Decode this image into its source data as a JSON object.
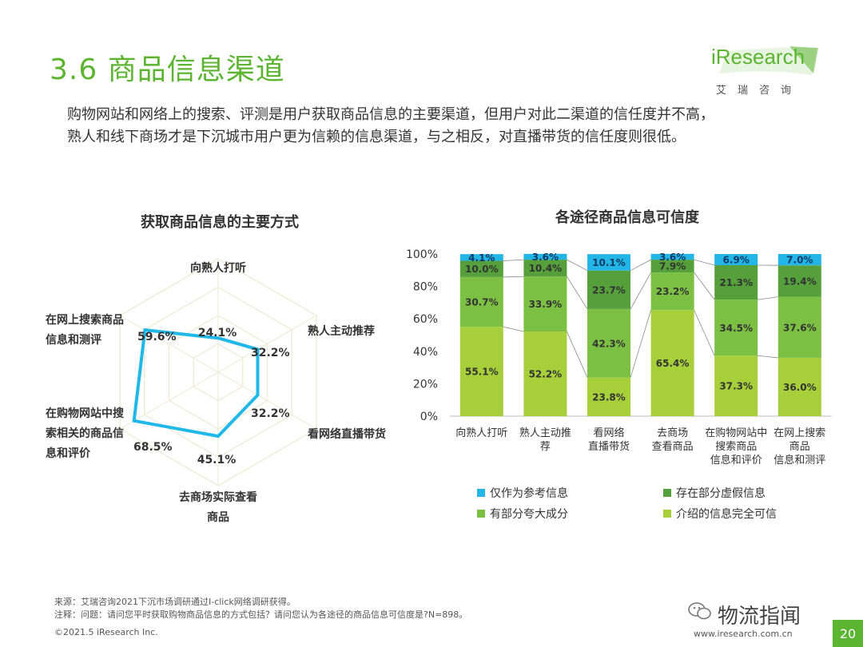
{
  "header": {
    "title": "3.6 商品信息渠道",
    "logo_main": "iResearch",
    "logo_sub": "艾瑞咨询"
  },
  "summary": [
    "购物网站和网络上的搜索、评测是用户获取商品信息的主要渠道，但用户对此二渠道的信任度并不高，",
    "熟人和线下商场才是下沉城市用户更为信赖的信息渠道，与之相反，对直播带货的信任度则很低。"
  ],
  "footer": {
    "source": "来源：艾瑞咨询2021下沉市场调研通过I-click网络调研获得。",
    "note": "注释：问题：请问您平时获取购物商品信息的方式包括？请问您认为各途径的商品信息可信度是?N=898。",
    "copyright": "©2021.5 iResearch Inc.",
    "brand": "物流指闻",
    "url": "www.iresearch.com.cn",
    "page": "20"
  },
  "colors": {
    "accent": "#5cb531",
    "radar_line": "#1fb8e8",
    "grid": "#f0ecd8"
  },
  "chart_data": [
    {
      "type": "radar",
      "title": "获取商品信息的主要方式",
      "categories": [
        {
          "label": "向熟人打听",
          "value_label": "24.1%"
        },
        {
          "label": "熟人主动推荐",
          "value_label": "32.2%"
        },
        {
          "label": "看网络直播带货",
          "value_label": "32.2%"
        },
        {
          "label": "去商场实际查看商品",
          "value_label": "45.1%"
        },
        {
          "label": "在购物网站中搜索相关的商品信息和评价",
          "value_label": "68.5%"
        },
        {
          "label": "在网上搜索商品信息和测评",
          "value_label": "59.6%"
        }
      ],
      "values": [
        24.1,
        32.2,
        32.2,
        45.1,
        68.5,
        59.6
      ],
      "ylim": [
        0,
        80
      ],
      "grid": true
    },
    {
      "type": "bar",
      "stacked": true,
      "percent": true,
      "title": "各途径商品信息可信度",
      "categories": [
        "向熟人打听",
        "熟人主动推荐",
        "看网络直播带货",
        "去商场查看商品",
        "在购物网站中搜索商品信息和评价",
        "在网上搜索商品信息和测评"
      ],
      "y_ticks": [
        "0%",
        "20%",
        "40%",
        "60%",
        "80%",
        "100%"
      ],
      "ylim": [
        0,
        100
      ],
      "series": [
        {
          "name": "介绍的信息完全可信",
          "color": "#a6cf3a",
          "values": [
            55.1,
            52.2,
            23.8,
            65.4,
            37.3,
            36.0
          ],
          "labels": [
            "55.1%",
            "52.2%",
            "23.8%",
            "65.4%",
            "37.3%",
            "36.0%"
          ]
        },
        {
          "name": "有部分夸大成分",
          "color": "#7cc043",
          "values": [
            30.7,
            33.9,
            42.3,
            23.2,
            34.5,
            37.6
          ],
          "labels": [
            "30.7%",
            "33.9%",
            "42.3%",
            "23.2%",
            "34.5%",
            "37.6%"
          ]
        },
        {
          "name": "存在部分虚假信息",
          "color": "#55a03b",
          "values": [
            10.0,
            10.4,
            23.7,
            7.9,
            21.3,
            19.4
          ],
          "labels": [
            "10.0%",
            "10.4%",
            "23.7%",
            "7.9%",
            "21.3%",
            "19.4%"
          ]
        },
        {
          "name": "仅作为参考信息",
          "color": "#22b5e6",
          "values": [
            4.1,
            3.6,
            10.1,
            3.6,
            6.9,
            7.0
          ],
          "labels": [
            "4.1%",
            "3.6%",
            "10.1%",
            "3.6%",
            "6.9%",
            "7.0%"
          ]
        }
      ],
      "legend": [
        "仅作为参考信息",
        "存在部分虚假信息",
        "有部分夸大成分",
        "介绍的信息完全可信"
      ],
      "legend_position": "bottom"
    }
  ]
}
